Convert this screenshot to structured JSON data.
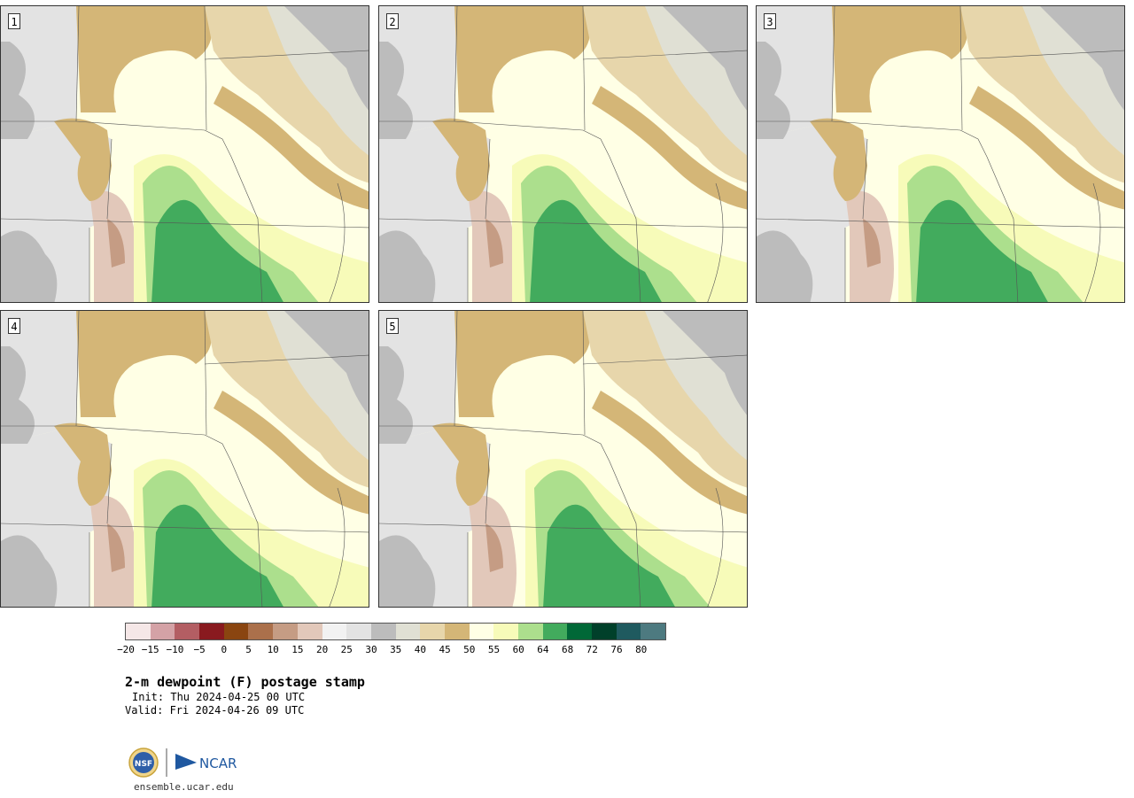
{
  "panels": [
    {
      "label": "1"
    },
    {
      "label": "2"
    },
    {
      "label": "3"
    },
    {
      "label": "4"
    },
    {
      "label": "5"
    }
  ],
  "colorbar": {
    "colors": [
      "#f5e7e7",
      "#d4a2a6",
      "#b35e63",
      "#891a1f",
      "#8a4510",
      "#ab704b",
      "#c59c84",
      "#e2c8ba",
      "#f2f2f2",
      "#e3e3e3",
      "#bcbcbc",
      "#e0e0d4",
      "#e7d6ab",
      "#d4b677",
      "#ffffe5",
      "#f7fbb9",
      "#acdf8d",
      "#42ab5d",
      "#006837",
      "#00402a",
      "#1f5a5f",
      "#4d7a80"
    ],
    "ticks": [
      "−20",
      "−15",
      "−10",
      "−5",
      "0",
      "5",
      "10",
      "15",
      "20",
      "25",
      "30",
      "35",
      "40",
      "45",
      "50",
      "55",
      "60",
      "64",
      "68",
      "72",
      "76",
      "80"
    ]
  },
  "title": "2-m dewpoint (F) postage stamp",
  "init": "Init: Thu 2024-04-25 00 UTC",
  "valid": "Valid: Fri 2024-04-26 09 UTC",
  "logo": {
    "nsf": "NSF",
    "ncar": "NCAR"
  },
  "url": "ensemble.ucar.edu"
}
